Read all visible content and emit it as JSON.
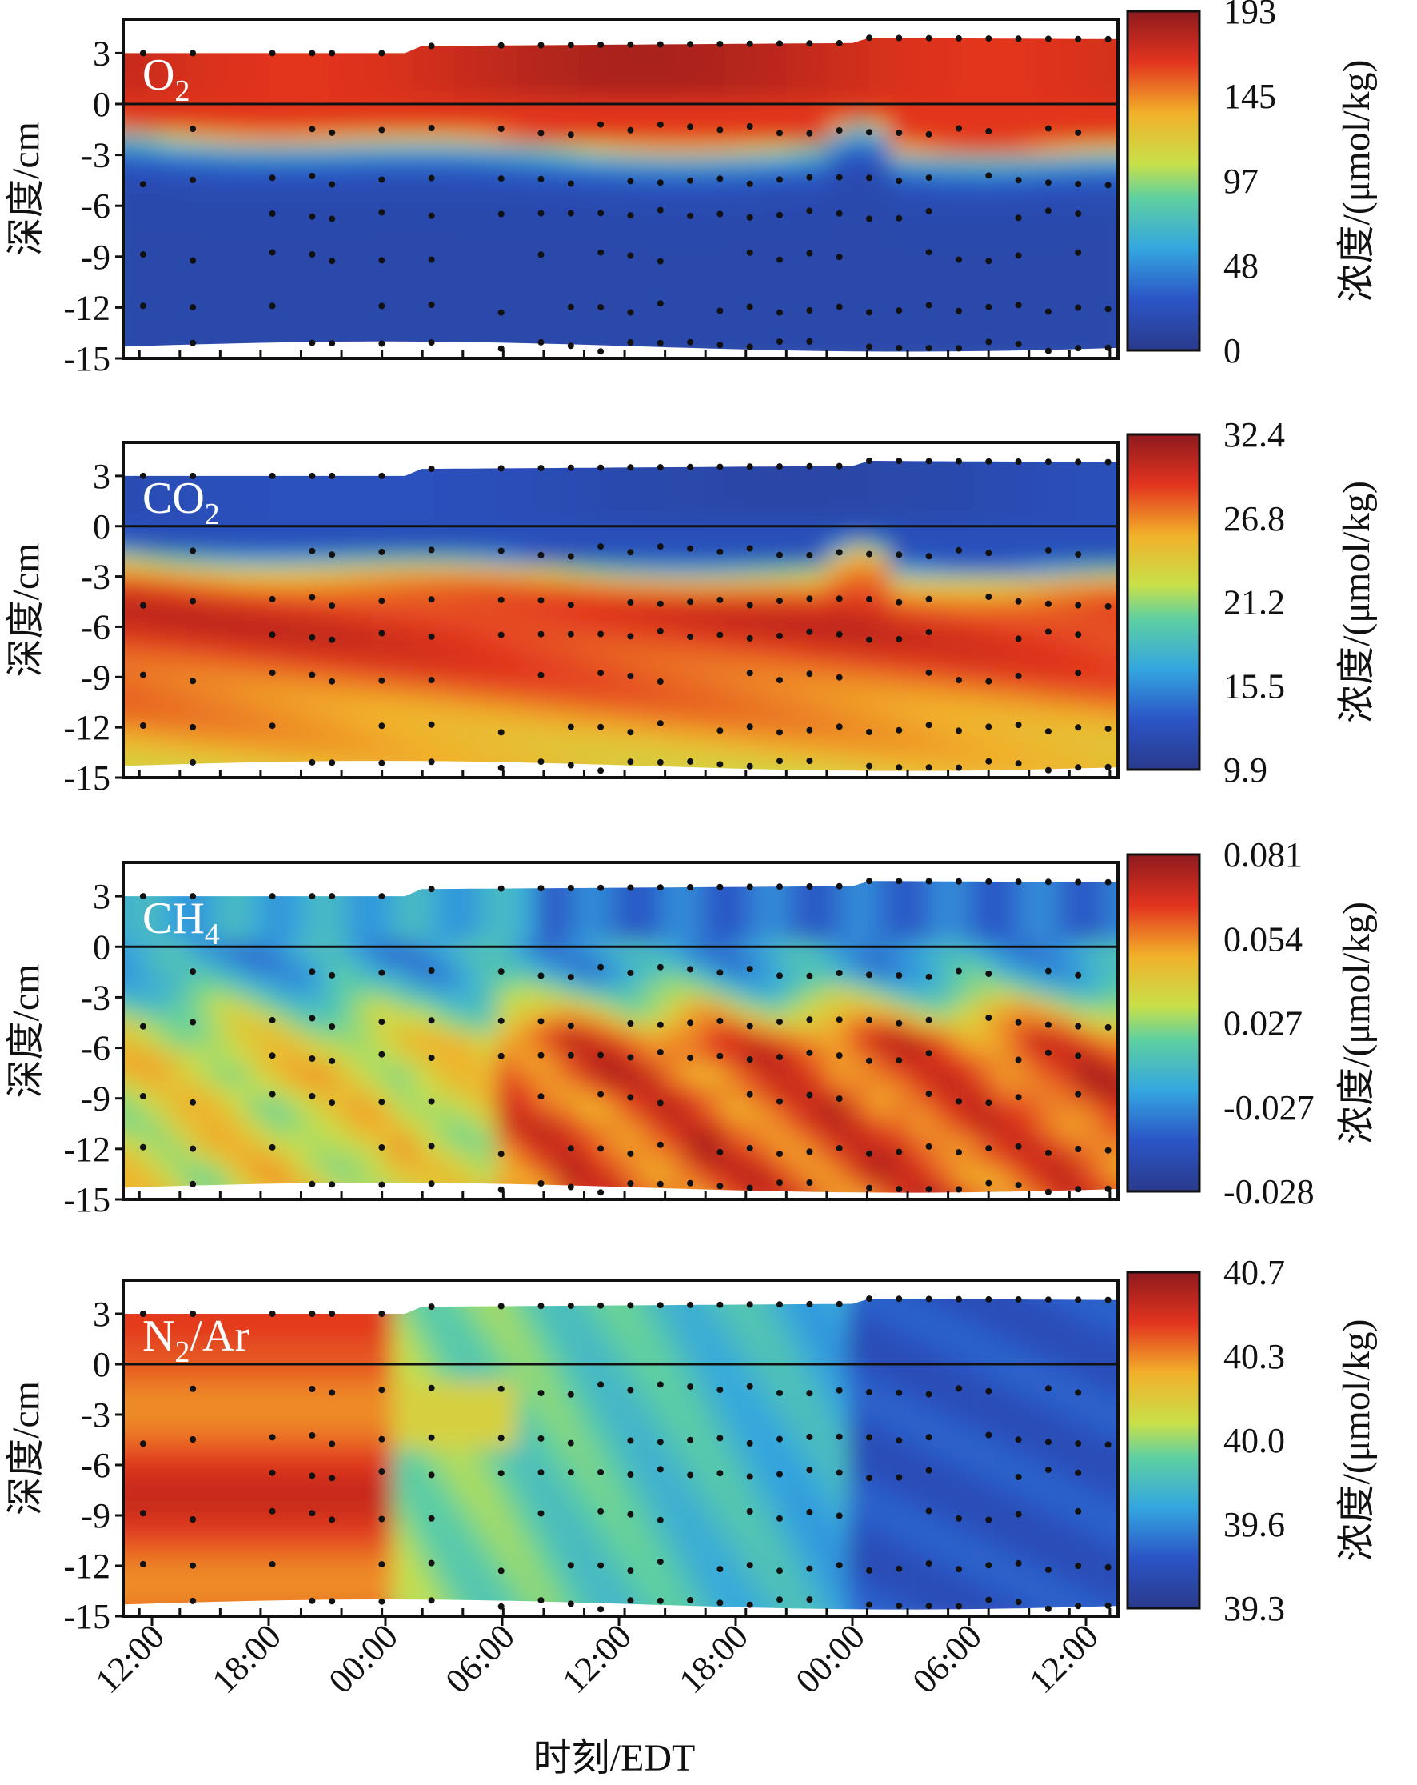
{
  "figure": {
    "xlabel": "时刻/EDT",
    "x_ticks": [
      "12:00",
      "18:00",
      "00:00",
      "06:00",
      "12:00",
      "18:00",
      "00:00",
      "06:00",
      "12:00"
    ]
  },
  "chart_data": [
    {
      "type": "heatmap",
      "panel_label": {
        "base": "O",
        "sub": "2",
        "suffix": ""
      },
      "ylabel": "深度/cm",
      "colorbar_label": "浓度/(μmol/kg)",
      "yticks": [
        3,
        0,
        -3,
        -6,
        -9,
        -12,
        -15
      ],
      "ylim": [
        -15,
        5
      ],
      "colorbar_ticks": [
        "193",
        "145",
        "97",
        "48",
        "0"
      ],
      "pattern": "o2",
      "surface_zero_line": true,
      "colormap": "jet"
    },
    {
      "type": "heatmap",
      "panel_label": {
        "base": "CO",
        "sub": "2",
        "suffix": ""
      },
      "ylabel": "深度/cm",
      "colorbar_label": "浓度/(μmol/kg)",
      "yticks": [
        3,
        0,
        -3,
        -6,
        -9,
        -12,
        -15
      ],
      "ylim": [
        -15,
        5
      ],
      "colorbar_ticks": [
        "32.4",
        "26.8",
        "21.2",
        "15.5",
        "9.9"
      ],
      "pattern": "co2",
      "surface_zero_line": true,
      "colormap": "jet"
    },
    {
      "type": "heatmap",
      "panel_label": {
        "base": "CH",
        "sub": "4",
        "suffix": ""
      },
      "ylabel": "深度/cm",
      "colorbar_label": "浓度/(μmol/kg)",
      "yticks": [
        3,
        0,
        -3,
        -6,
        -9,
        -12,
        -15
      ],
      "ylim": [
        -15,
        5
      ],
      "colorbar_ticks": [
        "0.081",
        "0.054",
        "0.027",
        "-0.027",
        "-0.028"
      ],
      "pattern": "ch4",
      "surface_zero_line": true,
      "colormap": "jet"
    },
    {
      "type": "heatmap",
      "panel_label": {
        "base": "N",
        "sub": "2",
        "suffix": "/Ar"
      },
      "ylabel": "深度/cm",
      "colorbar_label": "浓度/(μmol/kg)",
      "yticks": [
        3,
        0,
        -3,
        -6,
        -9,
        -12,
        -15
      ],
      "ylim": [
        -15,
        5
      ],
      "colorbar_ticks": [
        "40.7",
        "40.3",
        "40.0",
        "39.6",
        "39.3"
      ],
      "pattern": "n2ar",
      "surface_zero_line": true,
      "colormap": "jet"
    }
  ]
}
